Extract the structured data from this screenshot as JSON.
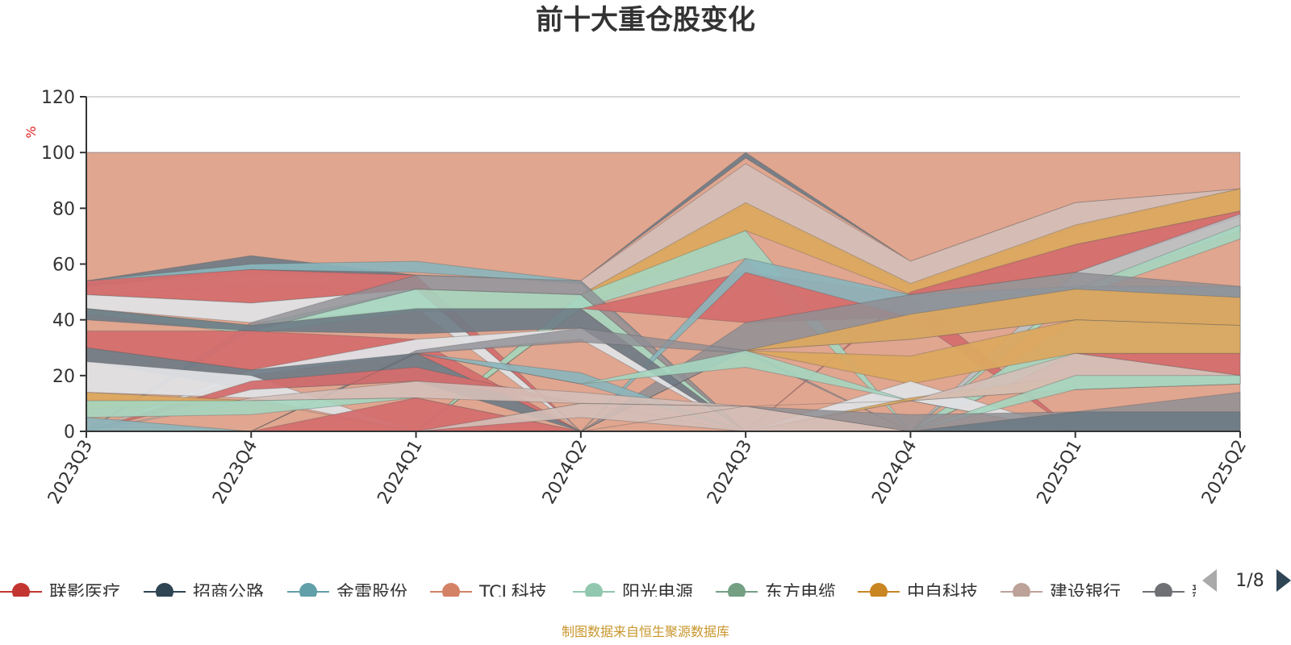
{
  "colors": {
    "axis": "#333333",
    "grid": "#cccccc",
    "source": "#c8962c",
    "unit": "#e02020",
    "arrow_active": "#2f4554",
    "arrow_inactive": "#aaaaaa",
    "background_band": "#e0a690"
  },
  "chart_data": {
    "type": "area",
    "title": "前十大重仓股变化",
    "ylabel": "%",
    "ylim": [
      0,
      120
    ],
    "yticks": [
      "0",
      "20",
      "40",
      "60",
      "80",
      "100",
      "120"
    ],
    "categories": [
      "2023Q3",
      "2023Q4",
      "2024Q1",
      "2024Q2",
      "2024Q3",
      "2024Q4",
      "2025Q1",
      "2025Q2"
    ],
    "source_note": "制图数据来自恒生聚源数据库",
    "pagination": "1/8",
    "legend": [
      {
        "name": "联影医疗",
        "color": "#c23531"
      },
      {
        "name": "招商公路",
        "color": "#2f4554"
      },
      {
        "name": "金雷股份",
        "color": "#61a0a8"
      },
      {
        "name": "TCL科技",
        "color": "#d48265"
      },
      {
        "name": "阳光电源",
        "color": "#91c7ae"
      },
      {
        "name": "东方电缆",
        "color": "#749f83"
      },
      {
        "name": "中自科技",
        "color": "#ca8622"
      },
      {
        "name": "建设银行",
        "color": "#bda29a"
      },
      {
        "name": "新",
        "color": "#6e7074"
      }
    ],
    "bands": [
      {
        "color": "#e0a690",
        "upper": [
          100,
          100,
          100,
          100,
          100,
          100,
          100,
          100
        ],
        "lower": [
          0,
          0,
          0,
          0,
          0,
          0,
          0,
          0
        ],
        "opacity": 1
      },
      {
        "color": "#6e7b86",
        "upper": [
          54,
          63,
          56,
          54,
          100,
          61,
          82,
          87
        ],
        "lower": [
          52,
          58,
          55,
          54,
          98,
          61,
          82,
          87
        ],
        "opacity": 0.9
      },
      {
        "color": "#d4bfb8",
        "upper": [
          52,
          57,
          56,
          54,
          96,
          61,
          82,
          87
        ],
        "lower": [
          49,
          52,
          51,
          49,
          81,
          52,
          73,
          87
        ],
        "opacity": 0.9
      },
      {
        "color": "#dba860",
        "upper": [
          0,
          0,
          0,
          49,
          82,
          53,
          74,
          87
        ],
        "lower": [
          0,
          0,
          0,
          44,
          72,
          49,
          67,
          79
        ],
        "opacity": 0.95
      },
      {
        "color": "#89b6bc",
        "upper": [
          54,
          60,
          61,
          54,
          0,
          0,
          0,
          0
        ],
        "lower": [
          53,
          58,
          57,
          53,
          0,
          0,
          0,
          0
        ],
        "opacity": 0.9
      },
      {
        "color": "#d46e6e",
        "upper": [
          54,
          58,
          56,
          0,
          0,
          50,
          67,
          79
        ],
        "lower": [
          49,
          46,
          51,
          0,
          0,
          49,
          57,
          77
        ],
        "opacity": 0.95
      },
      {
        "color": "#a5d6c0",
        "upper": [
          0,
          0,
          0,
          49,
          72,
          0,
          0,
          0
        ],
        "lower": [
          0,
          0,
          0,
          44,
          62,
          0,
          0,
          0
        ],
        "opacity": 0.9
      },
      {
        "color": "#b7c6cc",
        "upper": [
          0,
          0,
          0,
          0,
          0,
          0,
          57,
          78
        ],
        "lower": [
          0,
          0,
          0,
          0,
          0,
          0,
          51,
          72
        ],
        "opacity": 0.8
      },
      {
        "color": "#a5d6c0",
        "upper": [
          0,
          0,
          0,
          0,
          0,
          0,
          51,
          74
        ],
        "lower": [
          0,
          0,
          0,
          0,
          0,
          0,
          48,
          69
        ],
        "opacity": 0.9
      },
      {
        "color": "#dfe0e4",
        "upper": [
          49,
          46,
          51,
          0,
          0,
          0,
          0,
          0
        ],
        "lower": [
          44,
          39,
          44,
          0,
          0,
          0,
          0,
          0
        ],
        "opacity": 0.95
      },
      {
        "color": "#a5d6c0",
        "upper": [
          44,
          38,
          51,
          49,
          0,
          0,
          0,
          0
        ],
        "lower": [
          42,
          35,
          43,
          44,
          0,
          0,
          0,
          0
        ],
        "opacity": 0.9
      },
      {
        "color": "#8f8f95",
        "upper": [
          0,
          39,
          56,
          54,
          0,
          0,
          0,
          0
        ],
        "lower": [
          0,
          36,
          51,
          49,
          0,
          0,
          0,
          0
        ],
        "opacity": 0.8
      },
      {
        "color": "#d46e6e",
        "upper": [
          0,
          0,
          0,
          44,
          57,
          49,
          0,
          0
        ],
        "lower": [
          0,
          0,
          0,
          44,
          39,
          41,
          0,
          0
        ],
        "opacity": 0.95
      },
      {
        "color": "#89b6bc",
        "upper": [
          0,
          0,
          0,
          0,
          62,
          49,
          52,
          52
        ],
        "lower": [
          0,
          0,
          0,
          0,
          57,
          41,
          40,
          48
        ],
        "opacity": 0.9
      },
      {
        "color": "#8f8f95",
        "upper": [
          0,
          0,
          0,
          0,
          39,
          49,
          57,
          52
        ],
        "lower": [
          0,
          0,
          0,
          0,
          29,
          33,
          40,
          39
        ],
        "opacity": 0.85
      },
      {
        "color": "#6e7b86",
        "upper": [
          44,
          38,
          44,
          44,
          0,
          0,
          0,
          0
        ],
        "lower": [
          40,
          36,
          35,
          37,
          0,
          0,
          0,
          0
        ],
        "opacity": 0.9
      },
      {
        "color": "#d46e6e",
        "upper": [
          36,
          36,
          33,
          0,
          0,
          0,
          0,
          0
        ],
        "lower": [
          30,
          22,
          28,
          0,
          0,
          0,
          0,
          0
        ],
        "opacity": 0.95
      },
      {
        "color": "#dba860",
        "upper": [
          0,
          0,
          0,
          0,
          29,
          42,
          51,
          48
        ],
        "lower": [
          0,
          0,
          0,
          0,
          29,
          33,
          40,
          38
        ],
        "opacity": 0.95
      },
      {
        "color": "#dfe0e4",
        "upper": [
          0,
          22,
          33,
          37,
          0,
          0,
          0,
          0
        ],
        "lower": [
          0,
          20,
          28,
          33,
          0,
          0,
          0,
          0
        ],
        "opacity": 0.95
      },
      {
        "color": "#8f8f95",
        "upper": [
          0,
          0,
          29,
          37,
          29,
          0,
          0,
          0
        ],
        "lower": [
          0,
          0,
          28,
          32,
          28,
          0,
          0,
          0
        ],
        "opacity": 0.8
      },
      {
        "color": "#a5d6c0",
        "upper": [
          0,
          0,
          0,
          0,
          0,
          0,
          40,
          38
        ],
        "lower": [
          0,
          0,
          0,
          0,
          0,
          0,
          28,
          28
        ],
        "opacity": 0.9
      },
      {
        "color": "#d46e6e",
        "upper": [
          0,
          0,
          0,
          0,
          0,
          0,
          28,
          28
        ],
        "lower": [
          0,
          0,
          0,
          0,
          0,
          0,
          28,
          20
        ],
        "opacity": 0.95
      },
      {
        "color": "#dba860",
        "upper": [
          0,
          0,
          0,
          0,
          29,
          27,
          40,
          38
        ],
        "lower": [
          0,
          0,
          0,
          0,
          29,
          17,
          28,
          28
        ],
        "opacity": 0.95
      },
      {
        "color": "#6e7b86",
        "upper": [
          30,
          22,
          28,
          0,
          0,
          0,
          0,
          0
        ],
        "lower": [
          25,
          15,
          18,
          0,
          0,
          0,
          0,
          0
        ],
        "opacity": 0.9
      },
      {
        "color": "#dfe0e4",
        "upper": [
          25,
          20,
          0,
          0,
          0,
          18,
          0,
          0
        ],
        "lower": [
          14,
          12,
          0,
          0,
          0,
          11,
          0,
          0
        ],
        "opacity": 0.95
      },
      {
        "color": "#89b6bc",
        "upper": [
          0,
          0,
          28,
          21,
          0,
          0,
          0,
          0
        ],
        "lower": [
          0,
          0,
          28,
          17,
          0,
          0,
          0,
          0
        ],
        "opacity": 0.9
      },
      {
        "color": "#d46e6e",
        "upper": [
          0,
          18,
          23,
          10,
          0,
          0,
          0,
          0
        ],
        "lower": [
          0,
          15,
          18,
          10,
          0,
          0,
          0,
          0
        ],
        "opacity": 0.95
      },
      {
        "color": "#a5d6c0",
        "upper": [
          0,
          0,
          28,
          17,
          29,
          11,
          0,
          0
        ],
        "lower": [
          0,
          0,
          28,
          17,
          23,
          11,
          0,
          0
        ],
        "opacity": 0.9
      },
      {
        "color": "#dba860",
        "upper": [
          14,
          11,
          0,
          0,
          0,
          12,
          20,
          20
        ],
        "lower": [
          8,
          11,
          0,
          0,
          0,
          11,
          15,
          17
        ],
        "opacity": 0.95
      },
      {
        "color": "#d4bfb8",
        "upper": [
          0,
          12,
          18,
          14,
          9,
          11,
          28,
          20
        ],
        "lower": [
          0,
          11,
          12,
          10,
          9,
          11,
          15,
          17
        ],
        "opacity": 0.9
      },
      {
        "color": "#a5d6c0",
        "upper": [
          11,
          11,
          12,
          0,
          0,
          0,
          20,
          20
        ],
        "lower": [
          5,
          6,
          12,
          0,
          0,
          0,
          15,
          17
        ],
        "opacity": 0.9
      },
      {
        "color": "#89b6bc",
        "upper": [
          5,
          0,
          0,
          10,
          9,
          0,
          0,
          0
        ],
        "lower": [
          0,
          0,
          0,
          10,
          9,
          0,
          0,
          0
        ],
        "opacity": 0.9
      },
      {
        "color": "#d46e6e",
        "upper": [
          0,
          0,
          12,
          0,
          0,
          0,
          0,
          0
        ],
        "lower": [
          0,
          0,
          0,
          0,
          0,
          0,
          0,
          0
        ],
        "opacity": 0.95
      },
      {
        "color": "#d4bfb8",
        "upper": [
          0,
          0,
          0,
          10,
          9,
          0,
          0,
          0
        ],
        "lower": [
          0,
          0,
          0,
          5,
          0,
          0,
          0,
          0
        ],
        "opacity": 0.9
      },
      {
        "color": "#8f8f95",
        "upper": [
          0,
          0,
          0,
          0,
          9,
          6,
          7,
          14
        ],
        "lower": [
          0,
          0,
          0,
          0,
          9,
          0,
          0,
          0
        ],
        "opacity": 0.85
      },
      {
        "color": "#6e7b86",
        "upper": [
          0,
          0,
          0,
          0,
          0,
          0,
          7,
          7
        ],
        "lower": [
          0,
          0,
          0,
          0,
          0,
          0,
          0,
          0
        ],
        "opacity": 0.95
      }
    ]
  }
}
